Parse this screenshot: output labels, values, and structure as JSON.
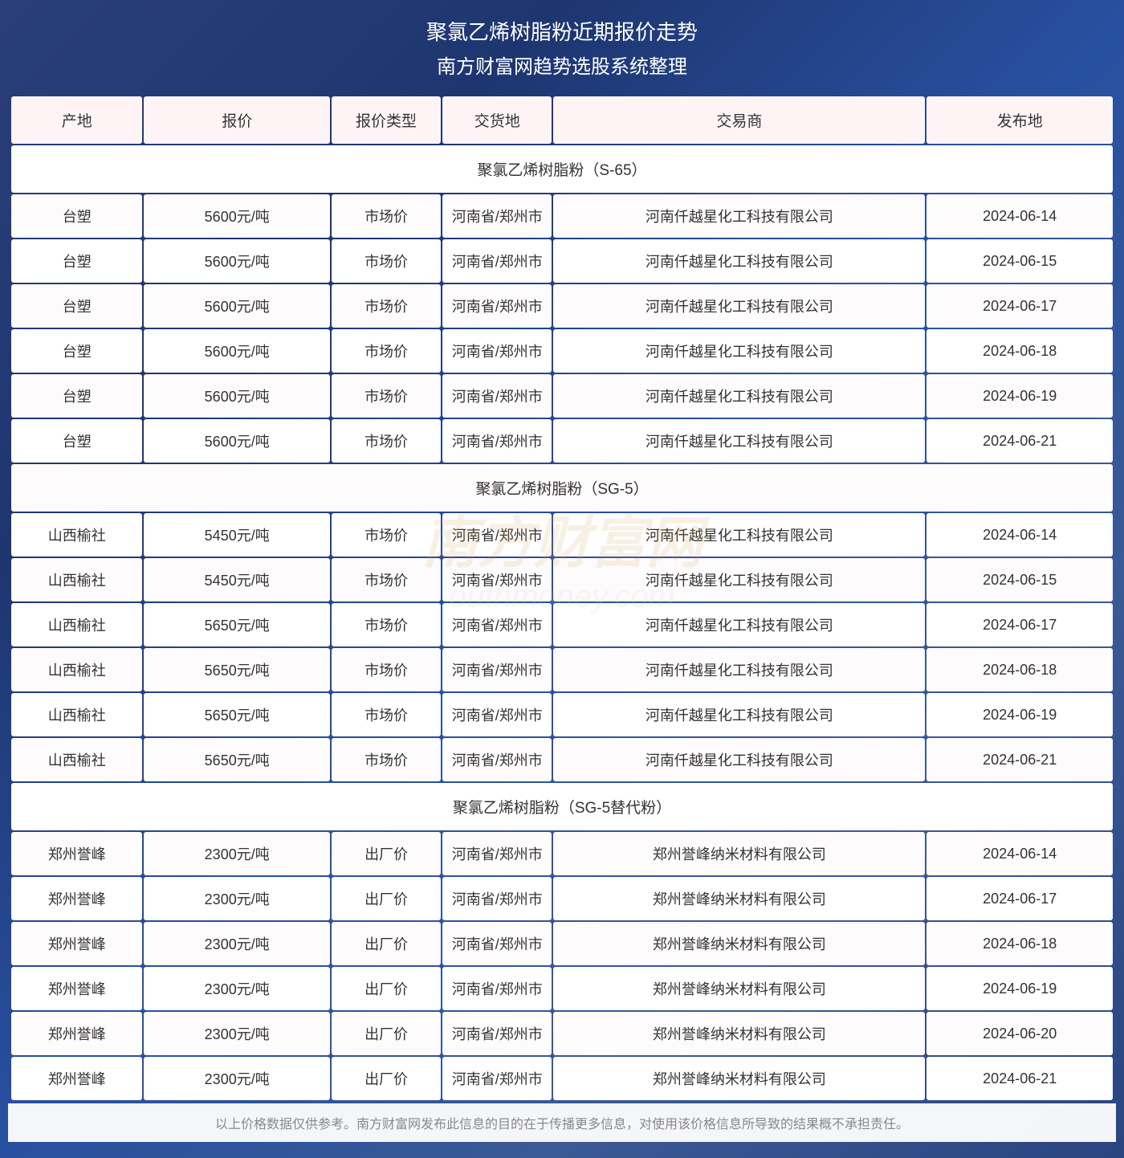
{
  "header": {
    "title": "聚氯乙烯树脂粉近期报价走势",
    "subtitle": "南方财富网趋势选股系统整理"
  },
  "table": {
    "columns": [
      "产地",
      "报价",
      "报价类型",
      "交货地",
      "交易商",
      "发布地"
    ],
    "sections": [
      {
        "title": "聚氯乙烯树脂粉（S-65）",
        "rows": [
          [
            "台塑",
            "5600元/吨",
            "市场价",
            "河南省/郑州市",
            "河南仟越星化工科技有限公司",
            "2024-06-14"
          ],
          [
            "台塑",
            "5600元/吨",
            "市场价",
            "河南省/郑州市",
            "河南仟越星化工科技有限公司",
            "2024-06-15"
          ],
          [
            "台塑",
            "5600元/吨",
            "市场价",
            "河南省/郑州市",
            "河南仟越星化工科技有限公司",
            "2024-06-17"
          ],
          [
            "台塑",
            "5600元/吨",
            "市场价",
            "河南省/郑州市",
            "河南仟越星化工科技有限公司",
            "2024-06-18"
          ],
          [
            "台塑",
            "5600元/吨",
            "市场价",
            "河南省/郑州市",
            "河南仟越星化工科技有限公司",
            "2024-06-19"
          ],
          [
            "台塑",
            "5600元/吨",
            "市场价",
            "河南省/郑州市",
            "河南仟越星化工科技有限公司",
            "2024-06-21"
          ]
        ]
      },
      {
        "title": "聚氯乙烯树脂粉（SG-5）",
        "rows": [
          [
            "山西榆社",
            "5450元/吨",
            "市场价",
            "河南省/郑州市",
            "河南仟越星化工科技有限公司",
            "2024-06-14"
          ],
          [
            "山西榆社",
            "5450元/吨",
            "市场价",
            "河南省/郑州市",
            "河南仟越星化工科技有限公司",
            "2024-06-15"
          ],
          [
            "山西榆社",
            "5650元/吨",
            "市场价",
            "河南省/郑州市",
            "河南仟越星化工科技有限公司",
            "2024-06-17"
          ],
          [
            "山西榆社",
            "5650元/吨",
            "市场价",
            "河南省/郑州市",
            "河南仟越星化工科技有限公司",
            "2024-06-18"
          ],
          [
            "山西榆社",
            "5650元/吨",
            "市场价",
            "河南省/郑州市",
            "河南仟越星化工科技有限公司",
            "2024-06-19"
          ],
          [
            "山西榆社",
            "5650元/吨",
            "市场价",
            "河南省/郑州市",
            "河南仟越星化工科技有限公司",
            "2024-06-21"
          ]
        ]
      },
      {
        "title": "聚氯乙烯树脂粉（SG-5替代粉）",
        "rows": [
          [
            "郑州誉峰",
            "2300元/吨",
            "出厂价",
            "河南省/郑州市",
            "郑州誉峰纳米材料有限公司",
            "2024-06-14"
          ],
          [
            "郑州誉峰",
            "2300元/吨",
            "出厂价",
            "河南省/郑州市",
            "郑州誉峰纳米材料有限公司",
            "2024-06-17"
          ],
          [
            "郑州誉峰",
            "2300元/吨",
            "出厂价",
            "河南省/郑州市",
            "郑州誉峰纳米材料有限公司",
            "2024-06-18"
          ],
          [
            "郑州誉峰",
            "2300元/吨",
            "出厂价",
            "河南省/郑州市",
            "郑州誉峰纳米材料有限公司",
            "2024-06-19"
          ],
          [
            "郑州誉峰",
            "2300元/吨",
            "出厂价",
            "河南省/郑州市",
            "郑州誉峰纳米材料有限公司",
            "2024-06-20"
          ],
          [
            "郑州誉峰",
            "2300元/吨",
            "出厂价",
            "河南省/郑州市",
            "郑州誉峰纳米材料有限公司",
            "2024-06-21"
          ]
        ]
      }
    ]
  },
  "footer": {
    "disclaimer": "以上价格数据仅供参考。南方财富网发布此信息的目的在于传播更多信息，对使用该价格信息所导致的结果概不承担责任。"
  },
  "watermark": {
    "cn": "南方财富网",
    "en": "outhmoney.com"
  },
  "styling": {
    "header_bg_color": "#fef4f6",
    "row_bg_color": "#ffffff",
    "row_alt_bg_color": "#fefbfc",
    "text_color": "#333333",
    "footer_text_color": "#888888",
    "body_bg_gradient": [
      "#2a3f7a",
      "#1e3670",
      "#2850a0",
      "#3a5a95",
      "#2a4580"
    ],
    "header_text_color": "#ffffff",
    "border_spacing": 2,
    "column_widths": [
      "12%",
      "17%",
      "10%",
      "10%",
      "34%",
      "17%"
    ]
  }
}
